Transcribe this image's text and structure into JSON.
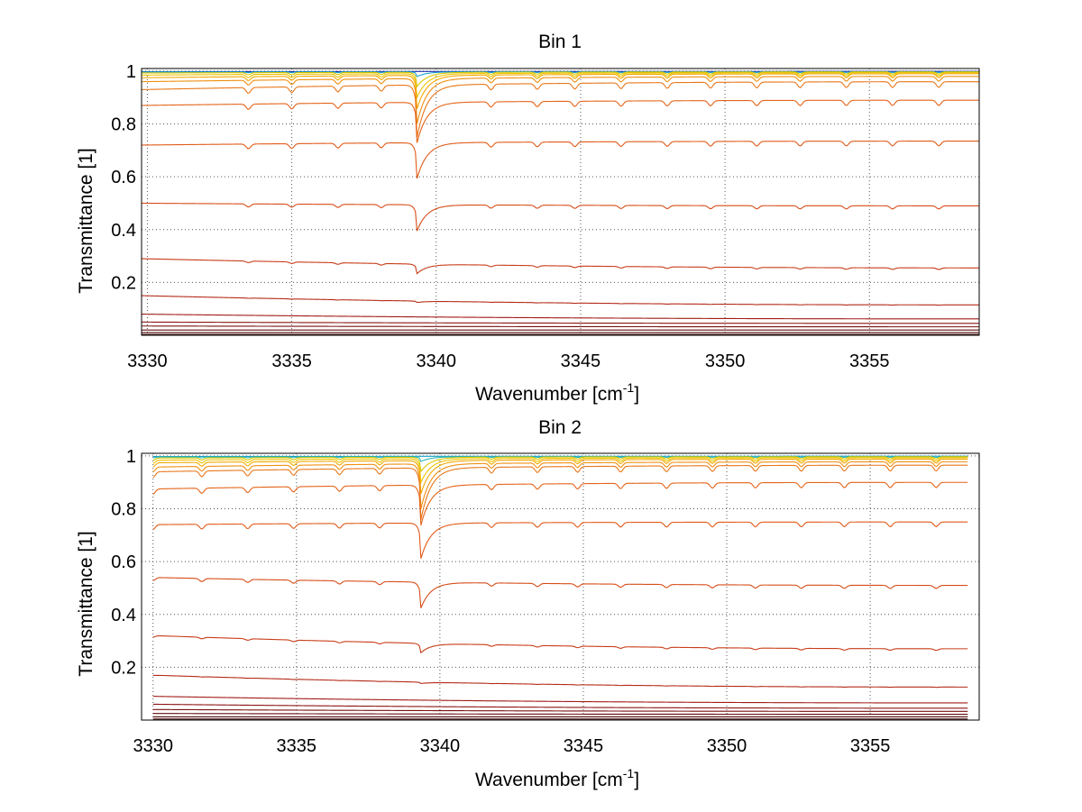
{
  "chart_data": [
    {
      "type": "line",
      "title": "Bin 1",
      "xlabel": "Wavenumber [cm",
      "xlabel_sup": "-1",
      "xlabel_end": "]",
      "ylabel": "Transmittance [1]",
      "xlim": [
        3329.8,
        3358.8
      ],
      "ylim": [
        0,
        1.01
      ],
      "xticks": [
        3330,
        3335,
        3340,
        3345,
        3350,
        3355
      ],
      "yticks": [
        0.2,
        0.4,
        0.6,
        0.8,
        1
      ],
      "xtick_labels": [
        "3330",
        "3335",
        "3340",
        "3345",
        "3350",
        "3355"
      ],
      "ytick_labels": [
        "0.2",
        "0.4",
        "0.6",
        "0.8",
        "1"
      ],
      "grid": true,
      "x_range": [
        3329.8,
        3358.8
      ],
      "series": [
        {
          "color": "#1f2ea8",
          "start": 0.998,
          "end": 0.999,
          "dip_center": 0.0,
          "minor": 0.0
        },
        {
          "color": "#17a0c8",
          "start": 0.997,
          "end": 0.998,
          "dip_center": 0.02,
          "minor": 0.003
        },
        {
          "color": "#d8c600",
          "start": 0.993,
          "end": 0.997,
          "dip_center": 0.06,
          "minor": 0.008
        },
        {
          "color": "#f0c400",
          "start": 0.985,
          "end": 0.994,
          "dip_center": 0.1,
          "minor": 0.012
        },
        {
          "color": "#f2a800",
          "start": 0.975,
          "end": 0.99,
          "dip_center": 0.14,
          "minor": 0.015
        },
        {
          "color": "#ef8f10",
          "start": 0.96,
          "end": 0.98,
          "dip_center": 0.19,
          "minor": 0.018
        },
        {
          "color": "#e8771a",
          "start": 0.93,
          "end": 0.96,
          "dip_center": 0.22,
          "minor": 0.022
        },
        {
          "color": "#e46418",
          "start": 0.87,
          "end": 0.89,
          "dip_center": 0.17,
          "minor": 0.02
        },
        {
          "color": "#e05a18",
          "start": 0.72,
          "end": 0.735,
          "dip_center": 0.15,
          "minor": 0.018
        },
        {
          "color": "#d64d18",
          "start": 0.5,
          "end": 0.49,
          "dip_center": 0.11,
          "minor": 0.012
        },
        {
          "color": "#c83c18",
          "start": 0.29,
          "end": 0.255,
          "dip_center": 0.04,
          "minor": 0.006
        },
        {
          "color": "#b42a18",
          "start": 0.15,
          "end": 0.115,
          "dip_center": 0.006,
          "minor": 0.001
        },
        {
          "color": "#a01c18",
          "start": 0.08,
          "end": 0.062,
          "dip_center": 0.0,
          "minor": 0.0
        },
        {
          "color": "#8c1414",
          "start": 0.05,
          "end": 0.045,
          "dip_center": 0.0,
          "minor": 0.0
        },
        {
          "color": "#781010",
          "start": 0.035,
          "end": 0.032,
          "dip_center": 0.0,
          "minor": 0.0
        },
        {
          "color": "#640c0c",
          "start": 0.02,
          "end": 0.02,
          "dip_center": 0.0,
          "minor": 0.0
        },
        {
          "color": "#500808",
          "start": 0.01,
          "end": 0.01,
          "dip_center": 0.0,
          "minor": 0.0
        },
        {
          "color": "#3a0404",
          "start": 0.003,
          "end": 0.003,
          "dip_center": 0.0,
          "minor": 0.0
        }
      ],
      "dip_positions": [
        3333.5,
        3335.0,
        3336.6,
        3338.1,
        3339.3,
        3341.9,
        3343.5,
        3344.8,
        3346.4,
        3348.0,
        3349.5,
        3351.1,
        3352.6,
        3354.2,
        3355.8,
        3357.4
      ]
    },
    {
      "type": "line",
      "title": "Bin 2",
      "xlabel": "Wavenumber [cm",
      "xlabel_sup": "-1",
      "xlabel_end": "]",
      "ylabel": "Transmittance [1]",
      "xlim": [
        3329.6,
        3358.8
      ],
      "ylim": [
        0,
        1.01
      ],
      "xticks": [
        3330,
        3335,
        3340,
        3345,
        3350,
        3355
      ],
      "yticks": [
        0.2,
        0.4,
        0.6,
        0.8,
        1
      ],
      "xtick_labels": [
        "3330",
        "3335",
        "3340",
        "3345",
        "3350",
        "3355"
      ],
      "ytick_labels": [
        "0.2",
        "0.4",
        "0.6",
        "0.8",
        "1"
      ],
      "grid": true,
      "x_range": [
        3330.0,
        3358.4
      ],
      "series": [
        {
          "color": "#17a0c8",
          "start": 0.998,
          "end": 0.999,
          "dip_center": 0.0,
          "minor": 0.0
        },
        {
          "color": "#2fb8b0",
          "start": 0.996,
          "end": 0.998,
          "dip_center": 0.02,
          "minor": 0.003
        },
        {
          "color": "#d8c600",
          "start": 0.992,
          "end": 0.997,
          "dip_center": 0.06,
          "minor": 0.008
        },
        {
          "color": "#f0c400",
          "start": 0.984,
          "end": 0.993,
          "dip_center": 0.1,
          "minor": 0.012
        },
        {
          "color": "#f2a800",
          "start": 0.974,
          "end": 0.988,
          "dip_center": 0.14,
          "minor": 0.015
        },
        {
          "color": "#ef8f10",
          "start": 0.958,
          "end": 0.978,
          "dip_center": 0.19,
          "minor": 0.018
        },
        {
          "color": "#e8771a",
          "start": 0.94,
          "end": 0.965,
          "dip_center": 0.22,
          "minor": 0.022
        },
        {
          "color": "#e46418",
          "start": 0.875,
          "end": 0.9,
          "dip_center": 0.17,
          "minor": 0.02
        },
        {
          "color": "#e05a18",
          "start": 0.74,
          "end": 0.75,
          "dip_center": 0.15,
          "minor": 0.018
        },
        {
          "color": "#d64d18",
          "start": 0.54,
          "end": 0.51,
          "dip_center": 0.11,
          "minor": 0.012
        },
        {
          "color": "#c83c18",
          "start": 0.32,
          "end": 0.27,
          "dip_center": 0.04,
          "minor": 0.006
        },
        {
          "color": "#b42a18",
          "start": 0.17,
          "end": 0.125,
          "dip_center": 0.006,
          "minor": 0.001
        },
        {
          "color": "#a01c18",
          "start": 0.09,
          "end": 0.065,
          "dip_center": 0.0,
          "minor": 0.0
        },
        {
          "color": "#8c1414",
          "start": 0.06,
          "end": 0.045,
          "dip_center": 0.0,
          "minor": 0.0
        },
        {
          "color": "#781010",
          "start": 0.04,
          "end": 0.033,
          "dip_center": 0.0,
          "minor": 0.0
        },
        {
          "color": "#640c0c",
          "start": 0.025,
          "end": 0.022,
          "dip_center": 0.0,
          "minor": 0.0
        },
        {
          "color": "#500808",
          "start": 0.012,
          "end": 0.012,
          "dip_center": 0.0,
          "minor": 0.0
        },
        {
          "color": "#3a0404",
          "start": 0.004,
          "end": 0.004,
          "dip_center": 0.0,
          "minor": 0.0
        }
      ],
      "dip_positions": [
        3330.0,
        3331.7,
        3333.3,
        3334.9,
        3336.5,
        3337.9,
        3339.3,
        3341.8,
        3343.4,
        3344.8,
        3346.3,
        3347.9,
        3349.5,
        3351.0,
        3352.6,
        3354.1,
        3355.7,
        3357.3
      ]
    }
  ]
}
